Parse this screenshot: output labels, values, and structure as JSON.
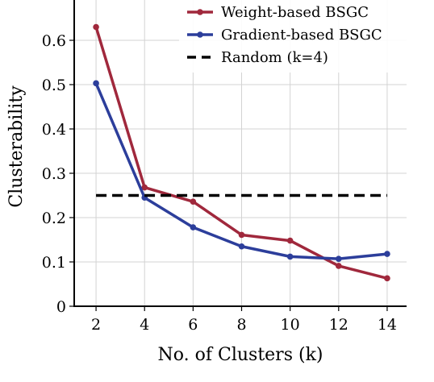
{
  "chart_data": {
    "type": "line",
    "title": "",
    "xlabel": "No. of Clusters (k)",
    "ylabel": "Clusterability",
    "x": [
      2,
      4,
      6,
      8,
      10,
      12,
      14
    ],
    "xticks": [
      "2",
      "4",
      "6",
      "8",
      "10",
      "12",
      "14"
    ],
    "xlim": [
      1.1,
      14.8
    ],
    "yticks": [
      "0",
      "0.1",
      "0.2",
      "0.3",
      "0.4",
      "0.5",
      "0.6"
    ],
    "ylim": [
      0,
      0.7
    ],
    "grid": true,
    "legend_position": "top-right",
    "series": [
      {
        "name": "Weight-based BSGC",
        "color": "#a0283c",
        "style": "solid",
        "marker": true,
        "values": [
          0.63,
          0.268,
          0.236,
          0.161,
          0.148,
          0.091,
          0.063
        ]
      },
      {
        "name": "Gradient-based BSGC",
        "color": "#2c3e9b",
        "style": "solid",
        "marker": true,
        "values": [
          0.503,
          0.245,
          0.178,
          0.135,
          0.112,
          0.107,
          0.118
        ]
      },
      {
        "name": "Random (k=4)",
        "color": "#000000",
        "style": "dashed",
        "marker": false,
        "values": [
          0.25,
          0.25,
          0.25,
          0.25,
          0.25,
          0.25,
          0.25
        ]
      }
    ]
  }
}
